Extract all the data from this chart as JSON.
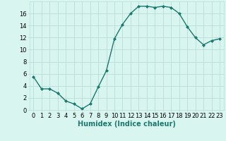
{
  "x": [
    0,
    1,
    2,
    3,
    4,
    5,
    6,
    7,
    8,
    9,
    10,
    11,
    12,
    13,
    14,
    15,
    16,
    17,
    18,
    19,
    20,
    21,
    22,
    23
  ],
  "y": [
    5.5,
    3.5,
    3.5,
    2.8,
    1.5,
    1.0,
    0.2,
    1.0,
    3.8,
    6.5,
    11.8,
    14.2,
    16.0,
    17.2,
    17.2,
    17.0,
    17.2,
    17.0,
    16.0,
    13.8,
    12.0,
    10.8,
    11.5,
    11.8
  ],
  "line_color": "#1a7a6e",
  "marker": "D",
  "marker_size": 2.0,
  "linewidth": 1.0,
  "bg_color": "#d8f5f0",
  "grid_color": "#b8ddd8",
  "xlabel": "Humidex (Indice chaleur)",
  "xlabel_fontsize": 7,
  "tick_fontsize": 6,
  "xlim": [
    -0.5,
    23.5
  ],
  "ylim": [
    0,
    18
  ],
  "yticks": [
    0,
    2,
    4,
    6,
    8,
    10,
    12,
    14,
    16
  ],
  "xticks": [
    0,
    1,
    2,
    3,
    4,
    5,
    6,
    7,
    8,
    9,
    10,
    11,
    12,
    13,
    14,
    15,
    16,
    17,
    18,
    19,
    20,
    21,
    22,
    23
  ]
}
